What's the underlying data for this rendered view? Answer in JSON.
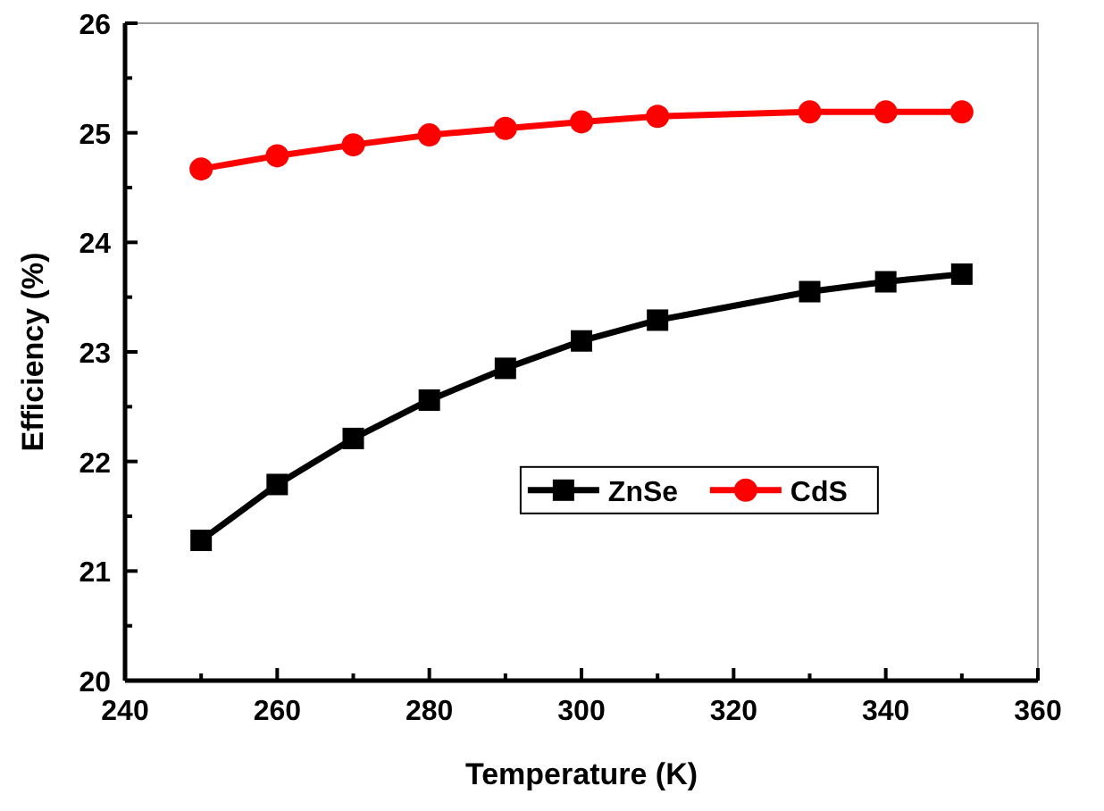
{
  "chart_data": {
    "type": "line",
    "xlabel": "Temperature (K)",
    "ylabel": "Efficiency (%)",
    "xlim": [
      240,
      360
    ],
    "ylim": [
      20,
      26
    ],
    "xticks": [
      240,
      {
        "value": 250,
        "label": null
      },
      260,
      {
        "value": 270,
        "label": null
      },
      280,
      {
        "value": 290,
        "label": null
      },
      300,
      {
        "value": 310,
        "label": null
      },
      320,
      {
        "value": 330,
        "label": null
      },
      340,
      {
        "value": 350,
        "label": null
      },
      360
    ],
    "yticks": [
      20,
      {
        "value": 20.5,
        "label": null
      },
      21,
      {
        "value": 21.5,
        "label": null
      },
      22,
      {
        "value": 22.5,
        "label": null
      },
      23,
      {
        "value": 23.5,
        "label": null
      },
      24,
      {
        "value": 24.5,
        "label": null
      },
      25,
      {
        "value": 25.5,
        "label": null
      },
      26
    ],
    "x": [
      250,
      260,
      270,
      280,
      290,
      300,
      310,
      330,
      340,
      350
    ],
    "series": [
      {
        "name": "ZnSe",
        "color": "#000000",
        "marker": "square",
        "values": [
          21.28,
          21.79,
          22.21,
          22.56,
          22.85,
          23.1,
          23.29,
          23.55,
          23.64,
          23.71
        ]
      },
      {
        "name": "CdS",
        "color": "#ff0000",
        "marker": "circle",
        "values": [
          24.67,
          24.79,
          24.89,
          24.98,
          25.04,
          25.1,
          25.15,
          25.19,
          25.19,
          25.19
        ]
      }
    ],
    "legend": "right",
    "grid": false,
    "line_style": "solid"
  }
}
